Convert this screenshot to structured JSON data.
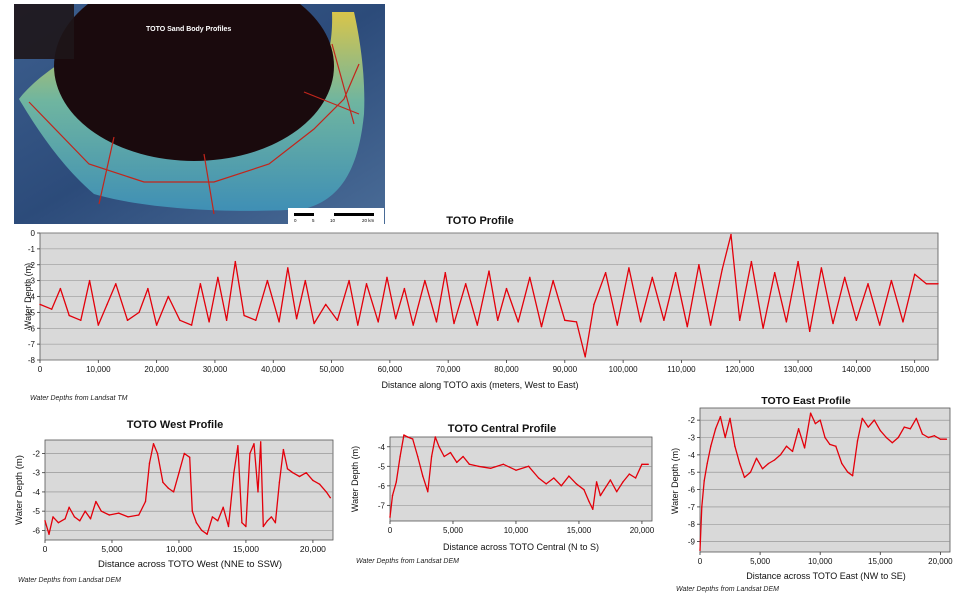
{
  "map": {
    "label": "TOTO Sand Body Profiles",
    "scale_ticks": [
      "0",
      "5",
      "10",
      "20 km"
    ],
    "colors": {
      "land": "#2c4b7a",
      "crater": "#1a0a0d",
      "sand_inner": "#d9c54a",
      "sand_mid": "#6fb5a0",
      "sand_outer": "#3f8fb5",
      "profile_line": "#c2251b"
    }
  },
  "colors": {
    "series": "#e3000b",
    "plot_bg": "#d9d9d9",
    "grid": "#8c8c8c"
  },
  "chart_data": [
    {
      "id": "main",
      "type": "line",
      "title": "TOTO Profile",
      "xlabel": "Distance along TOTO axis (meters, West to East)",
      "ylabel": "Water Depth (m)",
      "xlim": [
        0,
        154000
      ],
      "ylim": [
        -8,
        0
      ],
      "xticks": [
        0,
        10000,
        20000,
        30000,
        40000,
        50000,
        60000,
        70000,
        80000,
        90000,
        100000,
        110000,
        120000,
        130000,
        140000,
        150000
      ],
      "xtick_labels": [
        "0",
        "10,000",
        "20,000",
        "30,000",
        "40,000",
        "50,000",
        "60,000",
        "70,000",
        "80,000",
        "90,000",
        "100,000",
        "110,000",
        "120,000",
        "130,000",
        "140,000",
        "150,000"
      ],
      "yticks": [
        0,
        -1,
        -2,
        -3,
        -4,
        -5,
        -6,
        -7,
        -8
      ],
      "ytick_labels": [
        "0",
        "-1",
        "-2",
        "-3",
        "-4",
        "-5",
        "-6",
        "-7",
        "-8"
      ],
      "grid": true,
      "note": "Water Depths from Landsat TM",
      "x": [
        0,
        2000,
        3500,
        5000,
        7000,
        8500,
        10000,
        11500,
        13000,
        15000,
        17000,
        18500,
        20000,
        22000,
        24000,
        26000,
        27500,
        29000,
        30500,
        32000,
        33500,
        35000,
        37000,
        39000,
        41000,
        42500,
        44000,
        45500,
        47000,
        49000,
        51000,
        53000,
        54500,
        56000,
        58000,
        59500,
        61000,
        62500,
        64000,
        66000,
        68000,
        69500,
        71000,
        73000,
        75000,
        77000,
        78500,
        80000,
        82000,
        84000,
        86000,
        88000,
        90000,
        92000,
        93500,
        95000,
        97000,
        99000,
        101000,
        103000,
        105000,
        107000,
        109000,
        111000,
        113000,
        115000,
        117000,
        118500,
        120000,
        122000,
        124000,
        126000,
        128000,
        130000,
        132000,
        134000,
        136000,
        138000,
        140000,
        142000,
        144000,
        146000,
        148000,
        150000,
        152000,
        154000
      ],
      "y": [
        -4.5,
        -4.8,
        -3.5,
        -5.2,
        -5.5,
        -3.0,
        -5.8,
        -4.5,
        -3.2,
        -5.5,
        -5.0,
        -3.5,
        -5.8,
        -4.0,
        -5.5,
        -5.8,
        -3.2,
        -5.6,
        -2.8,
        -5.5,
        -1.8,
        -5.2,
        -5.5,
        -3.0,
        -5.6,
        -2.2,
        -5.4,
        -3.0,
        -5.7,
        -4.5,
        -5.5,
        -3.0,
        -5.8,
        -3.2,
        -5.6,
        -2.8,
        -5.4,
        -3.5,
        -5.8,
        -3.0,
        -5.6,
        -2.5,
        -5.7,
        -3.2,
        -5.8,
        -2.4,
        -5.5,
        -3.5,
        -5.6,
        -2.8,
        -5.9,
        -3.0,
        -5.5,
        -5.6,
        -7.8,
        -4.5,
        -2.5,
        -5.8,
        -2.2,
        -5.6,
        -2.8,
        -5.5,
        -2.5,
        -5.9,
        -2.0,
        -5.8,
        -2.3,
        -0.1,
        -5.5,
        -1.8,
        -6.0,
        -2.5,
        -5.6,
        -1.8,
        -6.2,
        -2.2,
        -5.7,
        -2.8,
        -5.5,
        -3.2,
        -5.8,
        -3.0,
        -5.6,
        -2.6,
        -3.2,
        -3.2
      ]
    },
    {
      "id": "west",
      "type": "line",
      "title": "TOTO West Profile",
      "xlabel": "Distance across TOTO West (NNE to SSW)",
      "ylabel": "Water Depth (m)",
      "xlim": [
        0,
        21500
      ],
      "ylim": [
        -6.5,
        -1.3
      ],
      "xticks": [
        0,
        5000,
        10000,
        15000,
        20000
      ],
      "xtick_labels": [
        "0",
        "5,000",
        "10,000",
        "15,000",
        "20,000"
      ],
      "yticks": [
        -2,
        -3,
        -4,
        -5,
        -6
      ],
      "ytick_labels": [
        "-2",
        "-3",
        "-4",
        "-5",
        "-6"
      ],
      "grid": true,
      "note": "Water Depths from Landsat DEM",
      "x": [
        0,
        300,
        600,
        1000,
        1500,
        1800,
        2200,
        2600,
        3000,
        3400,
        3800,
        4200,
        4800,
        5500,
        6200,
        7000,
        7500,
        7800,
        8100,
        8400,
        8800,
        9200,
        9600,
        10000,
        10400,
        10800,
        11000,
        11300,
        11700,
        12100,
        12500,
        12900,
        13300,
        13700,
        14100,
        14400,
        14700,
        15000,
        15300,
        15600,
        15900,
        16100,
        16300,
        16600,
        16900,
        17200,
        17500,
        17800,
        18100,
        18500,
        19000,
        19500,
        20000,
        20500,
        21000,
        21300
      ],
      "y": [
        -5.5,
        -6.2,
        -5.3,
        -5.6,
        -5.4,
        -4.8,
        -5.3,
        -5.5,
        -5.0,
        -5.4,
        -4.5,
        -5.0,
        -5.2,
        -5.1,
        -5.3,
        -5.2,
        -4.5,
        -2.5,
        -1.5,
        -2.0,
        -3.5,
        -3.8,
        -4.0,
        -3.0,
        -2.0,
        -2.2,
        -5.0,
        -5.6,
        -6.0,
        -6.2,
        -5.3,
        -5.5,
        -4.8,
        -5.8,
        -3.0,
        -1.6,
        -5.6,
        -5.8,
        -2.0,
        -1.5,
        -4.0,
        -1.4,
        -5.8,
        -5.5,
        -5.3,
        -5.6,
        -3.5,
        -1.8,
        -2.8,
        -3.0,
        -3.2,
        -3.0,
        -3.4,
        -3.6,
        -4.0,
        -4.3
      ]
    },
    {
      "id": "central",
      "type": "line",
      "title": "TOTO Central Profile",
      "xlabel": "Distance across TOTO Central (N to S)",
      "ylabel": "Water Depth (m)",
      "xlim": [
        0,
        20800
      ],
      "ylim": [
        -7.8,
        -3.5
      ],
      "xticks": [
        0,
        5000,
        10000,
        15000,
        20000
      ],
      "xtick_labels": [
        "0",
        "5,000",
        "10,000",
        "15,000",
        "20,000"
      ],
      "yticks": [
        -4,
        -5,
        -6,
        -7
      ],
      "ytick_labels": [
        "-4",
        "-5",
        "-6",
        "-7"
      ],
      "grid": true,
      "note": "Water Depths from Landsat DEM",
      "x": [
        0,
        200,
        500,
        800,
        1100,
        1400,
        1800,
        2200,
        2600,
        3000,
        3300,
        3600,
        3900,
        4300,
        4800,
        5300,
        5800,
        6300,
        7000,
        8000,
        9000,
        10000,
        11000,
        11800,
        12400,
        13000,
        13600,
        14200,
        14800,
        15400,
        15800,
        16100,
        16400,
        16700,
        17000,
        17500,
        18000,
        18500,
        19000,
        19500,
        20000,
        20500
      ],
      "y": [
        -7.6,
        -6.5,
        -5.8,
        -4.5,
        -3.4,
        -3.5,
        -3.6,
        -4.5,
        -5.5,
        -6.3,
        -4.5,
        -3.5,
        -4.0,
        -4.5,
        -4.3,
        -4.8,
        -4.5,
        -4.9,
        -5.0,
        -5.1,
        -4.9,
        -5.2,
        -5.0,
        -5.6,
        -5.9,
        -5.6,
        -6.0,
        -5.5,
        -5.9,
        -6.2,
        -6.8,
        -7.2,
        -5.8,
        -6.5,
        -6.2,
        -5.7,
        -6.3,
        -5.8,
        -5.4,
        -5.6,
        -4.9,
        -4.9
      ]
    },
    {
      "id": "east",
      "type": "line",
      "title": "TOTO East Profile",
      "xlabel": "Distance across TOTO East (NW to SE)",
      "ylabel": "Water Depth (m)",
      "xlim": [
        0,
        20800
      ],
      "ylim": [
        -9.6,
        -1.3
      ],
      "xticks": [
        0,
        5000,
        10000,
        15000,
        20000
      ],
      "xtick_labels": [
        "0",
        "5,000",
        "10,000",
        "15,000",
        "20,000"
      ],
      "yticks": [
        -2,
        -3,
        -4,
        -5,
        -6,
        -7,
        -8,
        -9
      ],
      "ytick_labels": [
        "-2",
        "-3",
        "-4",
        "-5",
        "-6",
        "-7",
        "-8",
        "-9"
      ],
      "grid": true,
      "note": "Water Depths from Landsat DEM",
      "x": [
        0,
        150,
        350,
        600,
        900,
        1300,
        1700,
        2100,
        2500,
        2900,
        3300,
        3700,
        4200,
        4700,
        5200,
        5700,
        6200,
        6700,
        7200,
        7700,
        8200,
        8700,
        9200,
        9600,
        10000,
        10400,
        10800,
        11300,
        11800,
        12300,
        12700,
        13100,
        13500,
        14000,
        14500,
        15000,
        15500,
        16000,
        16500,
        17000,
        17500,
        18000,
        18500,
        19000,
        19500,
        20000,
        20500
      ],
      "y": [
        -9.5,
        -7.0,
        -5.5,
        -4.5,
        -3.5,
        -2.5,
        -1.8,
        -3.0,
        -1.9,
        -3.5,
        -4.5,
        -5.3,
        -5.0,
        -4.2,
        -4.8,
        -4.5,
        -4.3,
        -4.0,
        -3.5,
        -3.8,
        -2.5,
        -3.6,
        -1.6,
        -2.2,
        -2.0,
        -3.0,
        -3.4,
        -3.5,
        -4.5,
        -5.0,
        -5.2,
        -3.2,
        -1.9,
        -2.4,
        -2.0,
        -2.6,
        -3.0,
        -3.3,
        -3.0,
        -2.4,
        -2.5,
        -1.9,
        -2.8,
        -3.0,
        -2.9,
        -3.1,
        -3.1
      ]
    }
  ]
}
